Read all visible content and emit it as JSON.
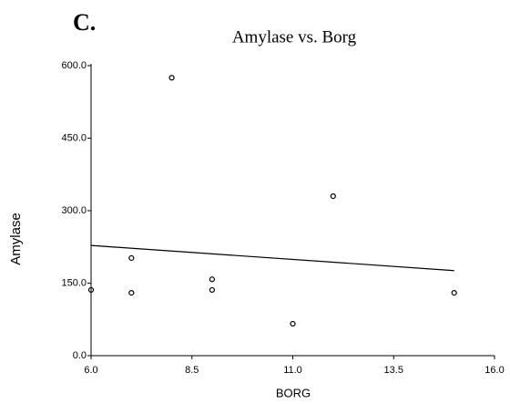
{
  "chart_data": {
    "type": "scatter",
    "panel_label": "C.",
    "title": "Amylase vs. Borg",
    "x_label": "BORG",
    "y_label": "Amylase",
    "x": [
      6,
      7,
      7,
      8,
      9,
      9,
      11,
      12,
      15
    ],
    "values": [
      136,
      202,
      130,
      575,
      158,
      136,
      66,
      330,
      130
    ],
    "color": "#000000",
    "trend": {
      "x": [
        6,
        15
      ],
      "values": [
        228,
        176
      ]
    },
    "xlim": [
      6,
      16
    ],
    "ylim": [
      0,
      600
    ],
    "xticks": [
      {
        "value": 6,
        "label": "6.0"
      },
      {
        "value": 8.5,
        "label": "8.5"
      },
      {
        "value": 11,
        "label": "11.0"
      },
      {
        "value": 13.5,
        "label": "13.5"
      },
      {
        "value": 16,
        "label": "16.0"
      }
    ],
    "yticks": [
      {
        "value": 0,
        "label": "0.0"
      },
      {
        "value": 150,
        "label": "150.0"
      },
      {
        "value": 300,
        "label": "300.0"
      },
      {
        "value": 450,
        "label": "450.0"
      },
      {
        "value": 600,
        "label": "600.0"
      }
    ],
    "grid": false
  }
}
